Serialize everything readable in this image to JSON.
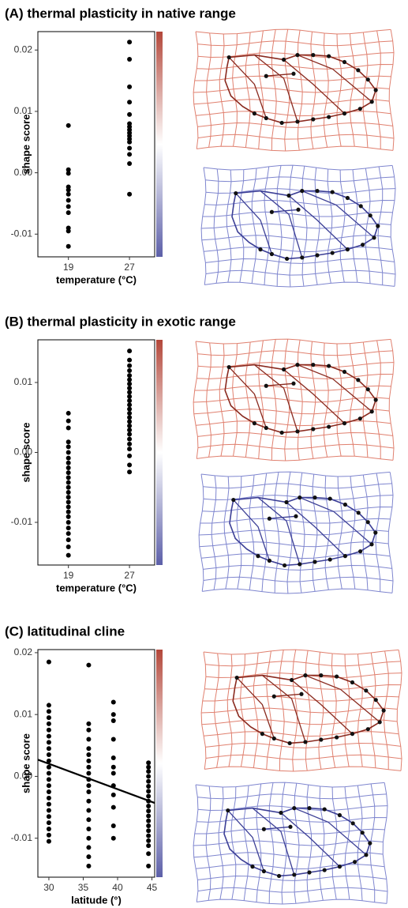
{
  "chart_data": [
    {
      "type": "scatter",
      "title": "(A) thermal plasticity in native range",
      "xlabel": "temperature (°C)",
      "ylabel": "shape score",
      "xlim": [
        15,
        30.3
      ],
      "ylim": [
        -0.0137,
        0.023
      ],
      "xticks": [
        19,
        27
      ],
      "yticks": [
        -0.01,
        {
          "value": 0,
          "label": "0.00"
        },
        0.01,
        0.02
      ],
      "colorbar": [
        "#b3473a",
        "#ffffff",
        "#5c5fa8"
      ],
      "series": [
        {
          "color": "#000000",
          "x": [
            19,
            19,
            19,
            19,
            19,
            19,
            19,
            19,
            19,
            19,
            19,
            19
          ],
          "values": [
            0.0077,
            0.0005,
            -0.0001,
            -0.0023,
            -0.0028,
            -0.0035,
            -0.0045,
            -0.0055,
            -0.0065,
            -0.009,
            -0.0095,
            -0.012
          ]
        },
        {
          "color": "#000000",
          "x": [
            27,
            27,
            27,
            27,
            27,
            27,
            27,
            27,
            27,
            27,
            27,
            27,
            27,
            27,
            27,
            27
          ],
          "values": [
            0.0213,
            0.0185,
            0.014,
            0.0115,
            0.0095,
            0.008,
            0.0075,
            0.007,
            0.0065,
            0.006,
            0.0055,
            0.005,
            0.004,
            0.003,
            0.0015,
            -0.0035
          ]
        }
      ]
    },
    {
      "type": "scatter",
      "title": "(B) thermal plasticity in exotic range",
      "xlabel": "temperature (°C)",
      "ylabel": "shape score",
      "xlim": [
        15,
        30.3
      ],
      "ylim": [
        -0.0161,
        0.0161
      ],
      "xticks": [
        19,
        27
      ],
      "yticks": [
        -0.01,
        {
          "value": 0,
          "label": "0.00"
        },
        0.01
      ],
      "colorbar": [
        "#b3473a",
        "#ffffff",
        "#5c5fa8"
      ],
      "series": [
        {
          "color": "#000000",
          "x": [
            19,
            19,
            19,
            19,
            19,
            19,
            19,
            19,
            19,
            19,
            19,
            19,
            19,
            19,
            19,
            19,
            19,
            19,
            19,
            19,
            19,
            19,
            19,
            19,
            19
          ],
          "values": [
            0.0056,
            0.0045,
            0.0035,
            0.0015,
            0.0008,
            0.0,
            -0.0008,
            -0.0015,
            -0.0022,
            -0.0029,
            -0.0036,
            -0.0043,
            -0.005,
            -0.0057,
            -0.0064,
            -0.0071,
            -0.0078,
            -0.0085,
            -0.0092,
            -0.01,
            -0.0108,
            -0.0116,
            -0.0125,
            -0.0135,
            -0.0147
          ]
        },
        {
          "color": "#000000",
          "x": [
            27,
            27,
            27,
            27,
            27,
            27,
            27,
            27,
            27,
            27,
            27,
            27,
            27,
            27,
            27,
            27,
            27,
            27,
            27,
            27,
            27,
            27,
            27,
            27,
            27
          ],
          "values": [
            0.0145,
            0.0132,
            0.0124,
            0.0117,
            0.011,
            0.0104,
            0.0098,
            0.0092,
            0.0086,
            0.008,
            0.0074,
            0.0068,
            0.0062,
            0.0056,
            0.005,
            0.0044,
            0.0038,
            0.0032,
            0.0026,
            0.0019,
            0.0012,
            0.0005,
            -0.0005,
            -0.0018,
            -0.0028
          ]
        }
      ]
    },
    {
      "type": "scatter",
      "title": "(C) latitudinal cline",
      "xlabel": "latitude (°)",
      "ylabel": "shape score",
      "xlim": [
        28.4,
        45.4
      ],
      "ylim": [
        -0.0163,
        0.0205
      ],
      "xticks": [
        30,
        35,
        40,
        45
      ],
      "yticks": [
        -0.01,
        {
          "value": 0,
          "label": "0.00"
        },
        0.01,
        0.02
      ],
      "colorbar": [
        "#b3473a",
        "#ffffff",
        "#5c5fa8"
      ],
      "series": [
        {
          "color": "#000000",
          "x": [
            30,
            30,
            30,
            30,
            30,
            30,
            30,
            30,
            30,
            30,
            30,
            30,
            30,
            30,
            30,
            30,
            30,
            30,
            30,
            30,
            30,
            30,
            30,
            30
          ],
          "values": [
            0.0185,
            0.0115,
            0.0105,
            0.0095,
            0.0085,
            0.0075,
            0.0065,
            0.0055,
            0.0045,
            0.0035,
            0.0025,
            0.0015,
            0.0005,
            -0.0005,
            -0.0015,
            -0.0025,
            -0.0035,
            -0.0045,
            -0.0055,
            -0.0065,
            -0.0075,
            -0.0085,
            -0.0095,
            -0.0105
          ]
        },
        {
          "color": "#000000",
          "x": [
            35.8,
            35.8,
            35.8,
            35.8,
            35.8,
            35.8,
            35.8,
            35.8,
            35.8,
            35.8,
            35.8,
            35.8,
            35.8,
            35.8,
            35.8,
            35.8,
            35.8,
            35.8,
            35.8,
            35.8
          ],
          "values": [
            0.018,
            0.0085,
            0.0075,
            0.006,
            0.0045,
            0.0035,
            0.0025,
            0.0015,
            0.0005,
            -0.0005,
            -0.0015,
            -0.0025,
            -0.004,
            -0.0055,
            -0.007,
            -0.0085,
            -0.01,
            -0.0115,
            -0.013,
            -0.0145
          ]
        },
        {
          "color": "#000000",
          "x": [
            39.4,
            39.4,
            39.4,
            39.4,
            39.4,
            39.4,
            39.4,
            39.4,
            39.4,
            39.4,
            39.4,
            39.4
          ],
          "values": [
            0.012,
            0.01,
            0.009,
            0.006,
            0.003,
            0.0015,
            0.0005,
            -0.0015,
            -0.003,
            -0.005,
            -0.008,
            -0.01
          ]
        },
        {
          "color": "#000000",
          "x": [
            44.5,
            44.5,
            44.5,
            44.5,
            44.5,
            44.5,
            44.5,
            44.5,
            44.5,
            44.5,
            44.5,
            44.5,
            44.5,
            44.5,
            44.5,
            44.5,
            44.5,
            44.5,
            44.5,
            44.5
          ],
          "values": [
            0.0022,
            0.0015,
            0.0008,
            0.0,
            -0.0008,
            -0.0016,
            -0.0024,
            -0.0032,
            -0.004,
            -0.0048,
            -0.0056,
            -0.0064,
            -0.0072,
            -0.008,
            -0.0088,
            -0.0096,
            -0.0104,
            -0.0112,
            -0.0125,
            -0.0145
          ]
        },
        {
          "color": "#000000",
          "style": "line",
          "x": [
            28.4,
            45.4
          ],
          "values": [
            0.0027,
            -0.0043
          ]
        }
      ]
    }
  ]
}
